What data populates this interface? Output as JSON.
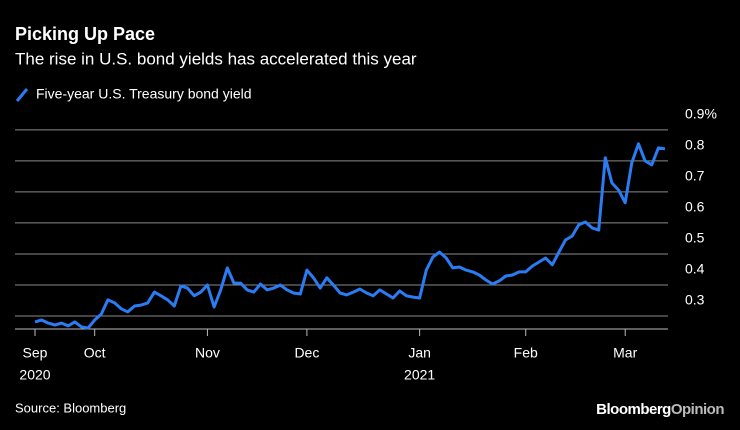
{
  "chart_data": {
    "type": "line",
    "title": "Picking Up Pace",
    "subtitle": "The rise in U.S. bond yields has accelerated this year",
    "source": "Source: Bloomberg",
    "brand": [
      "Bloomberg",
      "Opinion"
    ],
    "categories": [
      "Sep",
      null,
      null,
      null,
      null,
      null,
      null,
      null,
      null,
      "Oct",
      null,
      null,
      null,
      null,
      null,
      null,
      null,
      null,
      null,
      null,
      null,
      null,
      null,
      null,
      null,
      null,
      "Nov",
      null,
      null,
      null,
      null,
      null,
      null,
      null,
      null,
      null,
      null,
      null,
      null,
      null,
      null,
      "Dec",
      null,
      null,
      null,
      null,
      null,
      null,
      null,
      null,
      null,
      null,
      null,
      null,
      null,
      null,
      null,
      null,
      "Jan",
      null,
      null,
      null,
      null,
      null,
      null,
      null,
      null,
      null,
      null,
      null,
      null,
      null,
      null,
      null,
      "Feb",
      null,
      null,
      null,
      null,
      null,
      null,
      null,
      null,
      null,
      null,
      null,
      null,
      null,
      null,
      "Mar",
      null,
      null,
      null,
      null,
      null,
      null
    ],
    "years": [
      "2020",
      null,
      null,
      null,
      null,
      null,
      null,
      null,
      null,
      null,
      null,
      null,
      null,
      null,
      null,
      null,
      null,
      null,
      null,
      null,
      null,
      null,
      null,
      null,
      null,
      null,
      null,
      null,
      null,
      null,
      null,
      null,
      null,
      null,
      null,
      null,
      null,
      null,
      null,
      null,
      null,
      null,
      null,
      null,
      null,
      null,
      null,
      null,
      null,
      null,
      null,
      null,
      null,
      null,
      null,
      null,
      null,
      null,
      "2021",
      null,
      null,
      null,
      null,
      null,
      null,
      null,
      null,
      null,
      null,
      null,
      null,
      null,
      null,
      null,
      null,
      null,
      null,
      null,
      null,
      null,
      null,
      null,
      null,
      null,
      null,
      null,
      null,
      null,
      null,
      null,
      null,
      null,
      null,
      null,
      null,
      null
    ],
    "series": [
      {
        "name": "Five-year U.S. Treasury bond yield",
        "color": "#2a7cf2",
        "values": [
          0.281,
          0.287,
          0.277,
          0.271,
          0.277,
          0.268,
          0.281,
          0.265,
          0.261,
          0.287,
          0.306,
          0.352,
          0.342,
          0.323,
          0.313,
          0.332,
          0.335,
          0.342,
          0.377,
          0.365,
          0.352,
          0.332,
          0.397,
          0.39,
          0.365,
          0.377,
          0.4,
          0.329,
          0.384,
          0.455,
          0.406,
          0.406,
          0.384,
          0.377,
          0.403,
          0.384,
          0.39,
          0.4,
          0.384,
          0.374,
          0.371,
          0.448,
          0.423,
          0.39,
          0.423,
          0.4,
          0.374,
          0.368,
          0.377,
          0.387,
          0.374,
          0.365,
          0.384,
          0.371,
          0.358,
          0.381,
          0.365,
          0.361,
          0.358,
          0.448,
          0.49,
          0.506,
          0.487,
          0.455,
          0.458,
          0.448,
          0.442,
          0.432,
          0.416,
          0.403,
          0.413,
          0.429,
          0.432,
          0.442,
          0.442,
          0.461,
          0.474,
          0.487,
          0.465,
          0.506,
          0.545,
          0.558,
          0.594,
          0.603,
          0.584,
          0.577,
          0.81,
          0.729,
          0.706,
          0.665,
          0.794,
          0.855,
          0.8,
          0.787,
          0.842,
          0.839
        ]
      }
    ],
    "ylim": [
      0.258,
      0.948
    ],
    "yticks": [
      0.3,
      0.4,
      0.5,
      0.6,
      0.7,
      0.8,
      {
        "value": 0.9,
        "label": "0.9%"
      }
    ],
    "grid": true
  }
}
